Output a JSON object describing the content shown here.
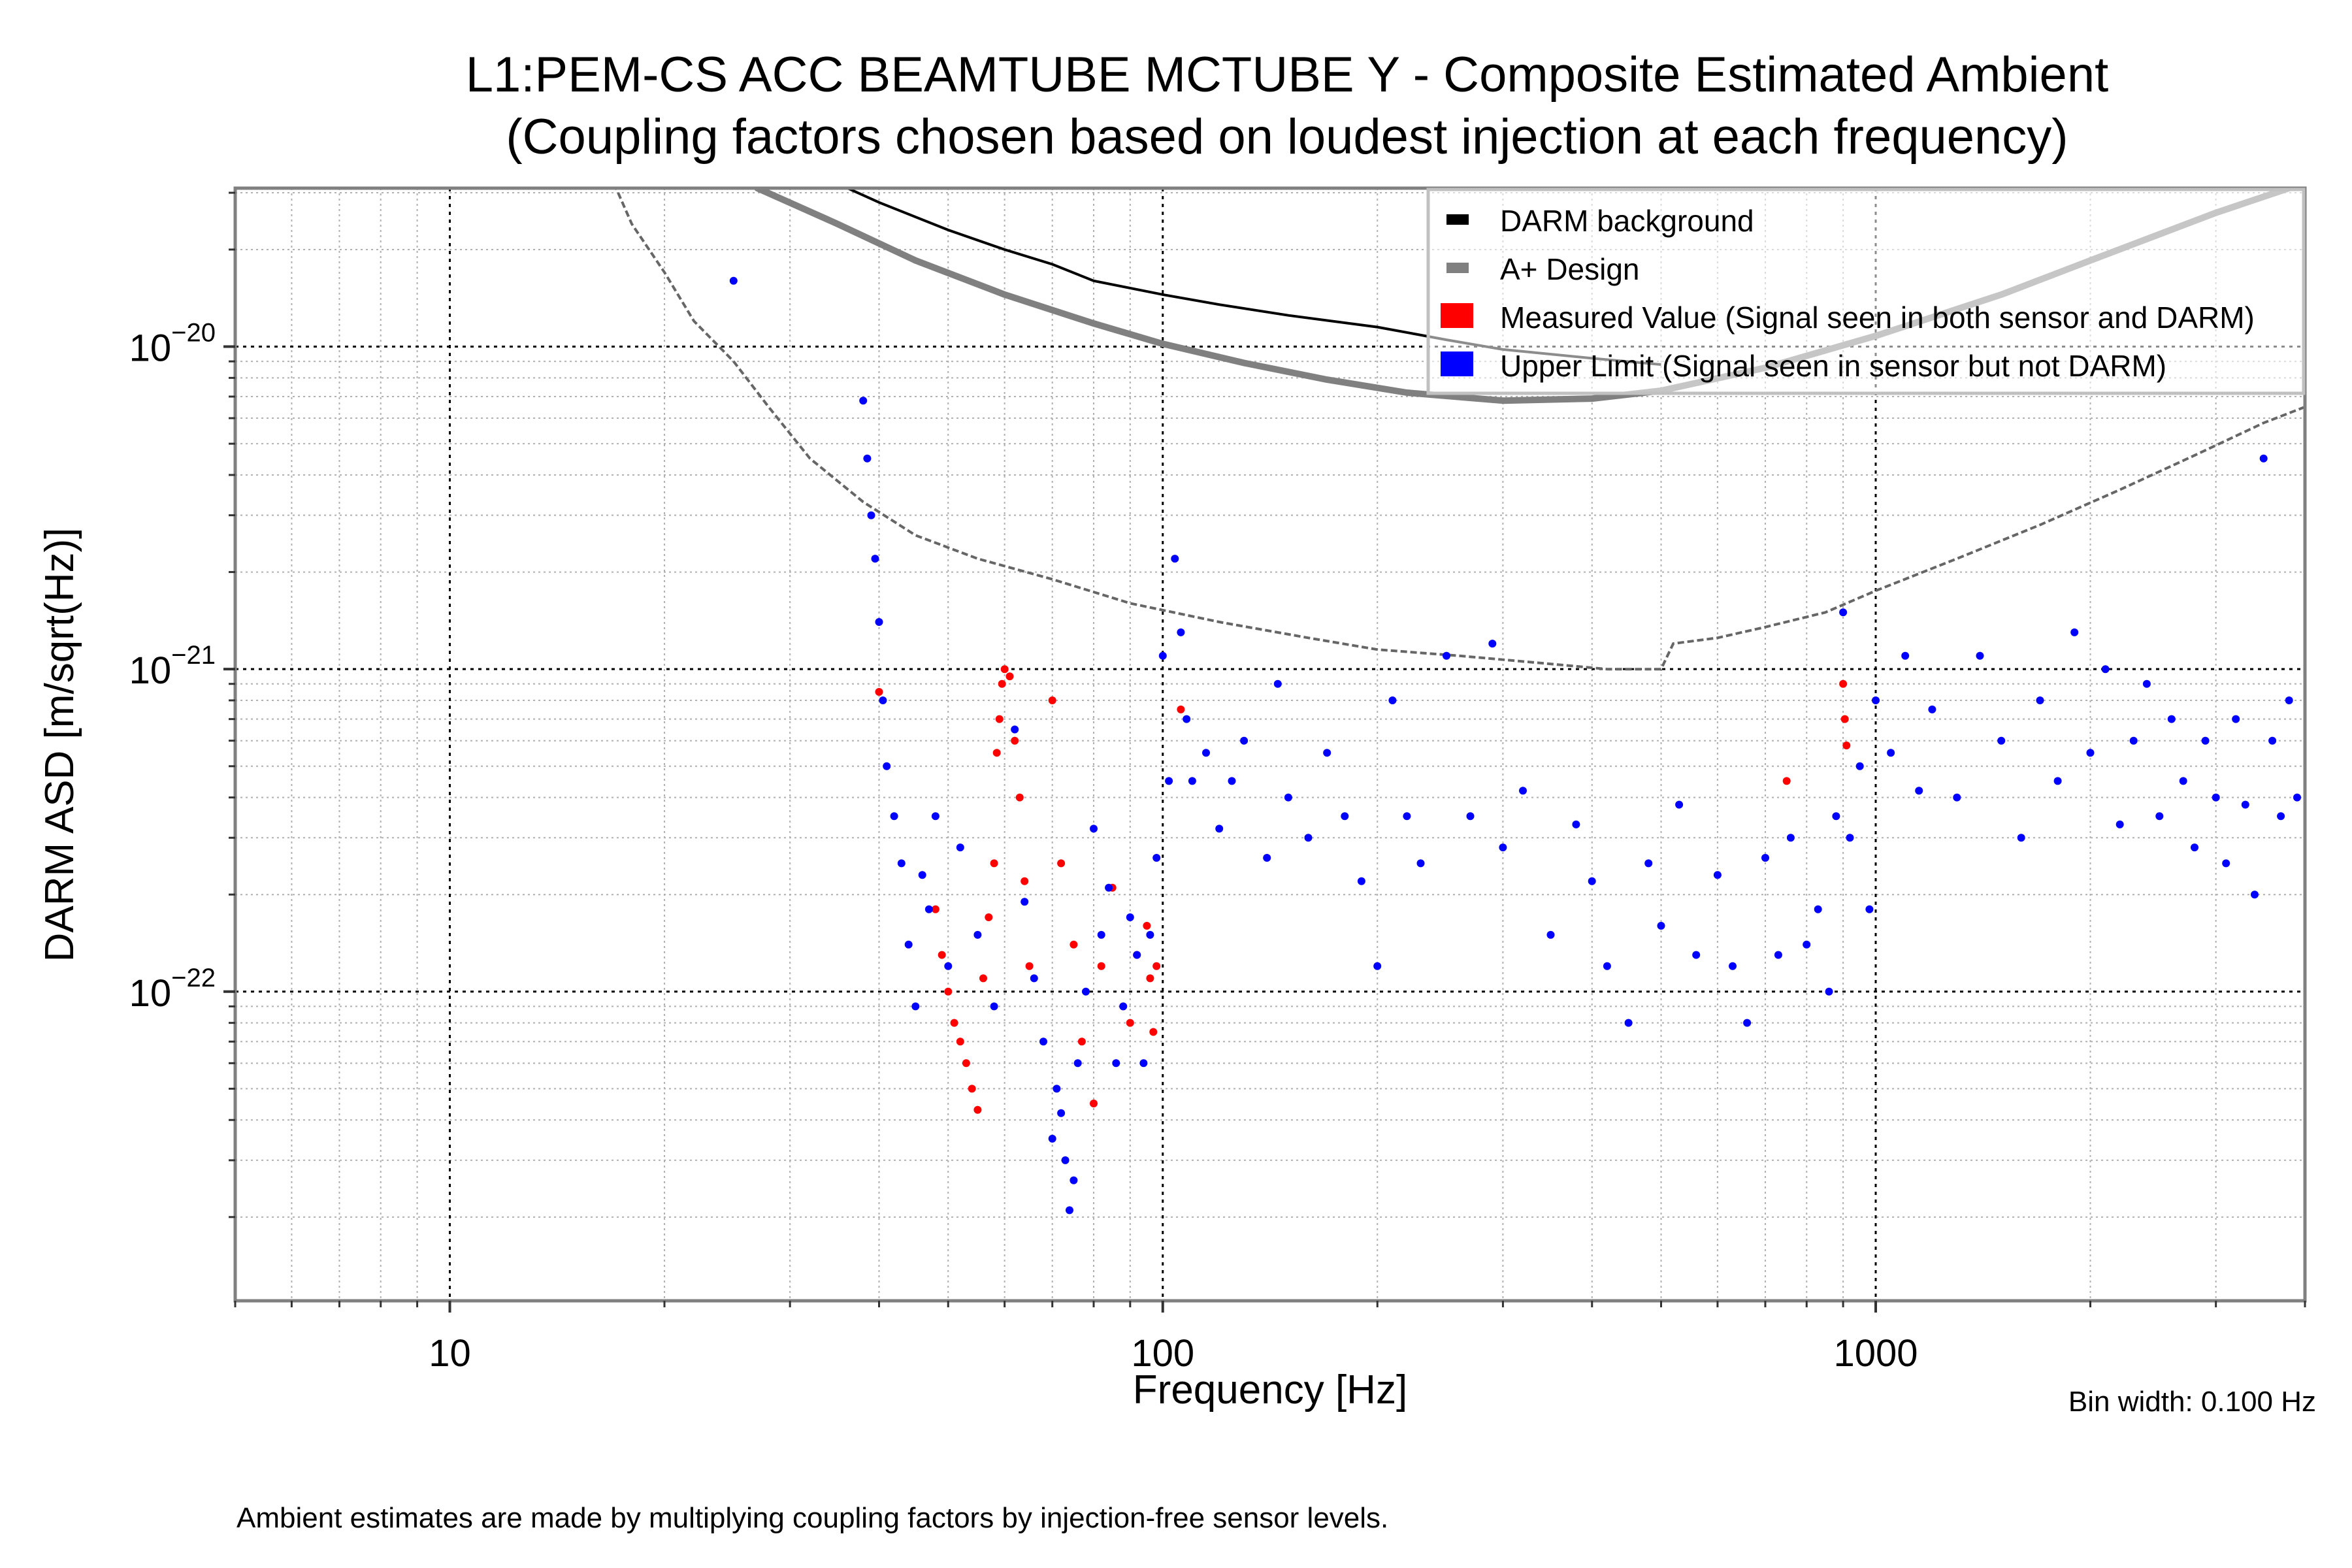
{
  "chart_data": {
    "type": "scatter",
    "title": "L1:PEM-CS ACC BEAMTUBE MCTUBE Y - Composite Estimated Ambient",
    "subtitle": "(Coupling factors chosen based on loudest injection at each frequency)",
    "xlabel": "Frequency [Hz]",
    "ylabel": "DARM ASD [m/sqrt(Hz)]",
    "xscale": "log",
    "yscale": "log",
    "xlim": [
      5,
      4000
    ],
    "ylim": [
      1.1e-23,
      3.1e-20
    ],
    "grid": true,
    "legend_position": "top-right",
    "x_ticks": [
      {
        "value": 10,
        "label": "10"
      },
      {
        "value": 100,
        "label": "100"
      },
      {
        "value": 1000,
        "label": "1000"
      }
    ],
    "y_ticks": [
      {
        "value": 1e-20,
        "base": "10",
        "exp": "−20"
      },
      {
        "value": 1e-21,
        "base": "10",
        "exp": "−21"
      },
      {
        "value": 1e-22,
        "base": "10",
        "exp": "−22"
      }
    ],
    "bin_width_note": "Bin width: 0.100 Hz",
    "footnote": "Ambient estimates are made by multiplying coupling factors by injection-free sensor levels.",
    "colors": {
      "darm": "#000000",
      "aplus": "#808080",
      "sensor_bg": "#666666",
      "measured": "#ff0000",
      "upper_limit": "#0000ff",
      "aplus_light": "#bfbfbf",
      "grid_major": "#000000",
      "grid_minor": "#b0b0b0",
      "frame": "#808080"
    },
    "legend": [
      {
        "key": "darm",
        "label": "DARM background",
        "swatch": "small"
      },
      {
        "key": "aplus",
        "label": "A+ Design",
        "swatch": "small"
      },
      {
        "key": "measured",
        "label": "Measured Value (Signal seen in both sensor and DARM)",
        "swatch": "large"
      },
      {
        "key": "upper_limit",
        "label": "Upper Limit (Signal seen in sensor but not DARM)",
        "swatch": "large"
      }
    ],
    "series": [
      {
        "name": "DARM background",
        "kind": "line",
        "color_key": "darm",
        "x": [
          35,
          40,
          50,
          60,
          70,
          80,
          100,
          120,
          150,
          200,
          250,
          300,
          400,
          500
        ],
        "y": [
          3.2e-20,
          2.8e-20,
          2.3e-20,
          2e-20,
          1.8e-20,
          1.6e-20,
          1.45e-20,
          1.35e-20,
          1.25e-20,
          1.15e-20,
          1.05e-20,
          9.8e-21,
          9.2e-21,
          8.8e-21
        ]
      },
      {
        "name": "A+ Design",
        "kind": "line",
        "color_key": "aplus",
        "x": [
          27,
          35,
          45,
          60,
          80,
          100,
          130,
          170,
          220,
          300,
          400,
          500,
          700,
          1000,
          1500,
          2000,
          3000,
          3800
        ],
        "y": [
          3.1e-20,
          2.4e-20,
          1.85e-20,
          1.45e-20,
          1.18e-20,
          1.02e-20,
          8.9e-21,
          7.9e-21,
          7.2e-21,
          6.8e-21,
          6.9e-21,
          7.3e-21,
          8.6e-21,
          1.08e-20,
          1.45e-20,
          1.85e-20,
          2.6e-20,
          3.1e-20
        ]
      },
      {
        "name": "Sensor-projected background (grey dashed)",
        "kind": "line",
        "color_key": "sensor_bg",
        "x": [
          17,
          18,
          20,
          22,
          25,
          28,
          32,
          38,
          45,
          55,
          70,
          90,
          120,
          160,
          200,
          260,
          330,
          420,
          500,
          520,
          600,
          700,
          850,
          1000,
          1300,
          1700,
          2200,
          2800,
          3500,
          4000
        ],
        "y": [
          3.2e-20,
          2.4e-20,
          1.7e-20,
          1.2e-20,
          9e-21,
          6.5e-21,
          4.5e-21,
          3.3e-21,
          2.6e-21,
          2.2e-21,
          1.9e-21,
          1.6e-21,
          1.4e-21,
          1.25e-21,
          1.15e-21,
          1.1e-21,
          1.05e-21,
          1e-21,
          1e-21,
          1.2e-21,
          1.25e-21,
          1.35e-21,
          1.5e-21,
          1.75e-21,
          2.2e-21,
          2.8e-21,
          3.6e-21,
          4.6e-21,
          5.8e-21,
          6.5e-21
        ]
      },
      {
        "name": "Measured Value",
        "kind": "scatter",
        "color_key": "measured",
        "x": [
          40,
          48,
          49,
          50,
          51,
          52,
          53,
          54,
          55,
          56,
          57,
          58,
          58.5,
          59,
          59.5,
          60,
          61,
          62,
          63,
          64,
          65,
          70,
          72,
          75,
          77,
          80,
          82,
          85,
          88,
          90,
          92,
          95,
          96,
          97,
          98,
          106,
          750,
          900,
          905,
          910
        ],
        "y": [
          8.5e-22,
          1.8e-22,
          1.3e-22,
          1e-22,
          8e-23,
          7e-23,
          6e-23,
          5e-23,
          4.3e-23,
          1.1e-22,
          1.7e-22,
          2.5e-22,
          5.5e-22,
          7e-22,
          9e-22,
          1e-21,
          9.5e-22,
          6e-22,
          4e-22,
          2.2e-22,
          1.2e-22,
          8e-22,
          2.5e-22,
          1.4e-22,
          7e-23,
          4.5e-23,
          1.2e-22,
          2.1e-22,
          9e-23,
          8e-23,
          1.3e-22,
          1.6e-22,
          1.1e-22,
          7.5e-23,
          1.2e-22,
          7.5e-22,
          4.5e-22,
          9e-22,
          7e-22,
          5.8e-22
        ]
      },
      {
        "name": "Upper Limit",
        "kind": "scatter",
        "color_key": "upper_limit",
        "x": [
          25,
          38,
          38.5,
          39,
          39.5,
          40,
          40.5,
          41,
          42,
          43,
          44,
          45,
          46,
          47,
          48,
          50,
          52,
          55,
          58,
          62,
          64,
          66,
          68,
          70,
          71,
          72,
          73,
          74,
          75,
          76,
          78,
          80,
          82,
          84,
          86,
          88,
          90,
          92,
          94,
          96,
          98,
          100,
          102,
          104,
          106,
          108,
          110,
          115,
          120,
          125,
          130,
          140,
          145,
          150,
          160,
          170,
          180,
          190,
          200,
          210,
          220,
          230,
          250,
          270,
          290,
          300,
          320,
          350,
          380,
          400,
          420,
          450,
          480,
          500,
          530,
          560,
          600,
          630,
          660,
          700,
          730,
          760,
          800,
          830,
          860,
          880,
          900,
          920,
          950,
          980,
          1000,
          1050,
          1100,
          1150,
          1200,
          1300,
          1400,
          1500,
          1600,
          1700,
          1800,
          1900,
          2000,
          2100,
          2200,
          2300,
          2400,
          2500,
          2600,
          2700,
          2800,
          2900,
          3000,
          3100,
          3200,
          3300,
          3400,
          3500,
          3600,
          3700,
          3800,
          3900
        ],
        "y": [
          1.6e-20,
          6.8e-21,
          4.5e-21,
          3e-21,
          2.2e-21,
          1.4e-21,
          8e-22,
          5e-22,
          3.5e-22,
          2.5e-22,
          1.4e-22,
          9e-23,
          2.3e-22,
          1.8e-22,
          3.5e-22,
          1.2e-22,
          2.8e-22,
          1.5e-22,
          9e-23,
          6.5e-22,
          1.9e-22,
          1.1e-22,
          7e-23,
          3.5e-23,
          5e-23,
          4.2e-23,
          3e-23,
          2.1e-23,
          2.6e-23,
          6e-23,
          1e-22,
          3.2e-22,
          1.5e-22,
          2.1e-22,
          6e-23,
          9e-23,
          1.7e-22,
          1.3e-22,
          6e-23,
          1.5e-22,
          2.6e-22,
          1.1e-21,
          4.5e-22,
          2.2e-21,
          1.3e-21,
          7e-22,
          4.5e-22,
          5.5e-22,
          3.2e-22,
          4.5e-22,
          6e-22,
          2.6e-22,
          9e-22,
          4e-22,
          3e-22,
          5.5e-22,
          3.5e-22,
          2.2e-22,
          1.2e-22,
          8e-22,
          3.5e-22,
          2.5e-22,
          1.1e-21,
          3.5e-22,
          1.2e-21,
          2.8e-22,
          4.2e-22,
          1.5e-22,
          3.3e-22,
          2.2e-22,
          1.2e-22,
          8e-23,
          2.5e-22,
          1.6e-22,
          3.8e-22,
          1.3e-22,
          2.3e-22,
          1.2e-22,
          8e-23,
          2.6e-22,
          1.3e-22,
          3e-22,
          1.4e-22,
          1.8e-22,
          1e-22,
          3.5e-22,
          1.5e-21,
          3e-22,
          5e-22,
          1.8e-22,
          8e-22,
          5.5e-22,
          1.1e-21,
          4.2e-22,
          7.5e-22,
          4e-22,
          1.1e-21,
          6e-22,
          3e-22,
          8e-22,
          4.5e-22,
          1.3e-21,
          5.5e-22,
          1e-21,
          3.3e-22,
          6e-22,
          9e-22,
          3.5e-22,
          7e-22,
          4.5e-22,
          2.8e-22,
          6e-22,
          4e-22,
          2.5e-22,
          7e-22,
          3.8e-22,
          2e-22,
          4.5e-21,
          6e-22,
          3.5e-22,
          8e-22,
          4e-22
        ]
      }
    ]
  }
}
